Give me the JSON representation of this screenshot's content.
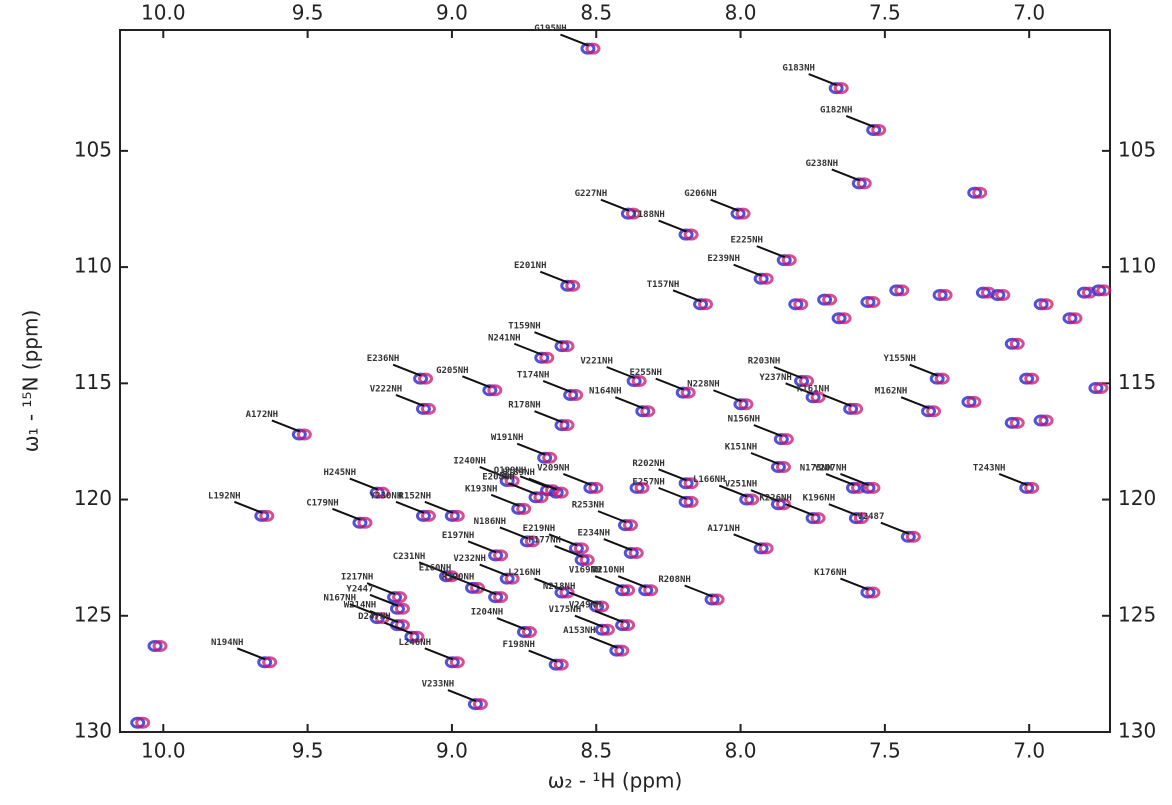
{
  "chart_data": {
    "type": "scatter",
    "x_label": "ω₂ - ¹H (ppm)",
    "y_label": "ω₁ - ¹⁵N (ppm)",
    "xlim": [
      10.15,
      6.72
    ],
    "ylim": [
      99.8,
      130
    ],
    "xticks": [
      {
        "value": 10,
        "label": "10.0"
      },
      9.5,
      {
        "value": 9,
        "label": "9.0"
      },
      8.5,
      {
        "value": 8,
        "label": "8.0"
      },
      7.5,
      {
        "value": 7,
        "label": "7.0"
      }
    ],
    "yticks": [
      105,
      110,
      115,
      120,
      125,
      130
    ],
    "colors": [
      "#3434d2",
      "#c8146e"
    ],
    "peaks": {
      "labels": [
        "G195NH",
        "G183NH",
        "G182NH",
        "G238NH",
        "G227NH",
        "G206NH",
        "T188NH",
        "E225NH",
        "E239NH",
        "E201NH",
        "T157NH",
        "N241NH",
        "T159NH",
        "E236NH",
        "G205NH",
        "V221NH",
        "E255NH",
        "R203NH",
        "Y155NH",
        "Y237NH",
        "N228NH",
        "T174NH",
        "R178NH",
        "N164NH",
        "M162NH",
        "K161NH",
        "N156NH",
        "A172NH",
        "V222NH",
        "W191NH",
        "V209NH",
        "I240NH",
        "Q199NH",
        "H189NH",
        "K151NH",
        "R202NH",
        "N173NH",
        "Y207NH",
        "L166NH",
        "V251NH",
        "L192NH",
        "H245NH",
        "Y230NH",
        "R152NH",
        "E208NH",
        "R253NH",
        "E257NH",
        "K196NH",
        "T243NH",
        "C179NH",
        "K193NH",
        "N186NH",
        "E219NH",
        "K226NH",
        "V2487",
        "E197NH",
        "C231NH",
        "E234NH",
        "A171NH",
        "F177NH",
        "V232NH",
        "V169NH",
        "I217NH",
        "Y2447",
        "R210NH",
        "R208NH",
        "K176NH",
        "N167NH",
        "W214NH",
        "E160NH",
        "L216NH",
        "R190NH",
        "N218NH",
        "I204NH",
        "V249NH",
        "D247NH",
        "A153NH",
        "V175NH",
        "N194NH",
        "L246NH",
        "F198NH",
        "V233NH"
      ],
      "x": [
        8.52,
        7.66,
        7.53,
        7.58,
        8.38,
        8.0,
        8.18,
        7.84,
        7.92,
        8.59,
        8.13,
        8.68,
        8.61,
        9.1,
        8.86,
        8.36,
        8.19,
        7.78,
        7.31,
        7.74,
        7.99,
        8.58,
        8.61,
        8.33,
        7.34,
        7.61,
        7.85,
        9.52,
        9.09,
        8.67,
        8.51,
        8.8,
        8.66,
        8.63,
        7.86,
        8.18,
        7.6,
        7.55,
        7.97,
        7.86,
        9.65,
        9.25,
        9.09,
        8.99,
        8.7,
        8.39,
        8.18,
        7.59,
        7.0,
        9.31,
        8.76,
        8.73,
        8.56,
        7.74,
        7.41,
        8.84,
        9.01,
        8.37,
        7.92,
        8.54,
        8.8,
        8.4,
        9.19,
        9.18,
        8.32,
        8.09,
        7.55,
        9.25,
        9.18,
        8.92,
        8.61,
        8.84,
        8.49,
        8.74,
        8.4,
        9.13,
        8.42,
        8.47,
        9.64,
        8.99,
        8.63,
        8.91
      ],
      "y": [
        100.6,
        102.3,
        104.1,
        106.4,
        107.7,
        107.7,
        108.6,
        109.7,
        110.5,
        110.8,
        111.6,
        113.9,
        113.4,
        114.8,
        115.3,
        114.9,
        115.4,
        114.9,
        114.8,
        115.6,
        115.9,
        115.5,
        116.8,
        116.2,
        116.2,
        116.1,
        117.4,
        117.2,
        116.1,
        118.2,
        119.5,
        119.2,
        119.6,
        119.7,
        118.6,
        119.3,
        119.5,
        119.5,
        120.0,
        120.2,
        120.7,
        119.7,
        120.7,
        120.7,
        119.9,
        121.1,
        120.1,
        120.8,
        119.5,
        121.0,
        120.4,
        121.8,
        122.1,
        120.8,
        121.6,
        122.4,
        123.3,
        122.3,
        122.1,
        122.6,
        123.4,
        123.9,
        124.2,
        124.7,
        123.9,
        124.3,
        124.0,
        125.1,
        125.4,
        123.8,
        124.0,
        124.2,
        124.6,
        125.7,
        125.4,
        125.9,
        126.5,
        125.6,
        127.0,
        127.0,
        127.1,
        128.8
      ]
    },
    "unassigned": {
      "x": [
        10.02,
        10.08,
        7.18,
        7.65,
        7.55,
        7.45,
        7.3,
        7.15,
        7.1,
        6.95,
        6.85,
        6.8,
        6.75,
        6.76,
        7.8,
        7.7,
        7.05,
        7.0,
        6.95,
        7.05,
        8.35,
        7.2
      ],
      "y": [
        126.3,
        129.6,
        106.8,
        112.2,
        111.5,
        111.0,
        111.2,
        111.1,
        111.2,
        111.6,
        112.2,
        111.1,
        111.0,
        115.2,
        111.6,
        111.4,
        113.3,
        114.8,
        116.6,
        116.7,
        119.5,
        115.8
      ]
    }
  }
}
